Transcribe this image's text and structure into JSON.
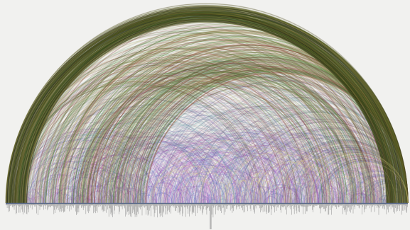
{
  "diagram": {
    "type": "arc-diagram",
    "background": "#f1f1ef",
    "palette": {
      "outer": [
        "#1c1c14",
        "#2e3a18",
        "#4e5a1e",
        "#6b6a2a",
        "#7a6e34",
        "#3d5a2a"
      ],
      "upper": [
        "#3f7a2c",
        "#5a8a34",
        "#7c6a34",
        "#8a3e34",
        "#6a2a2a",
        "#4a6a3a",
        "#c9b47a"
      ],
      "middle": [
        "#8a7a9a",
        "#6a8aa8",
        "#5aa0a0",
        "#9a6a8a",
        "#7a5aa0",
        "#c0a0a0"
      ],
      "lower": [
        "#b050c0",
        "#9a4ab8",
        "#7a5ad0",
        "#5a8ac0",
        "#c070c0",
        "#e0b0e0",
        "#6a7ad8"
      ]
    },
    "baseline_color": "#5a6a8a",
    "bar_color": "#808080"
  }
}
